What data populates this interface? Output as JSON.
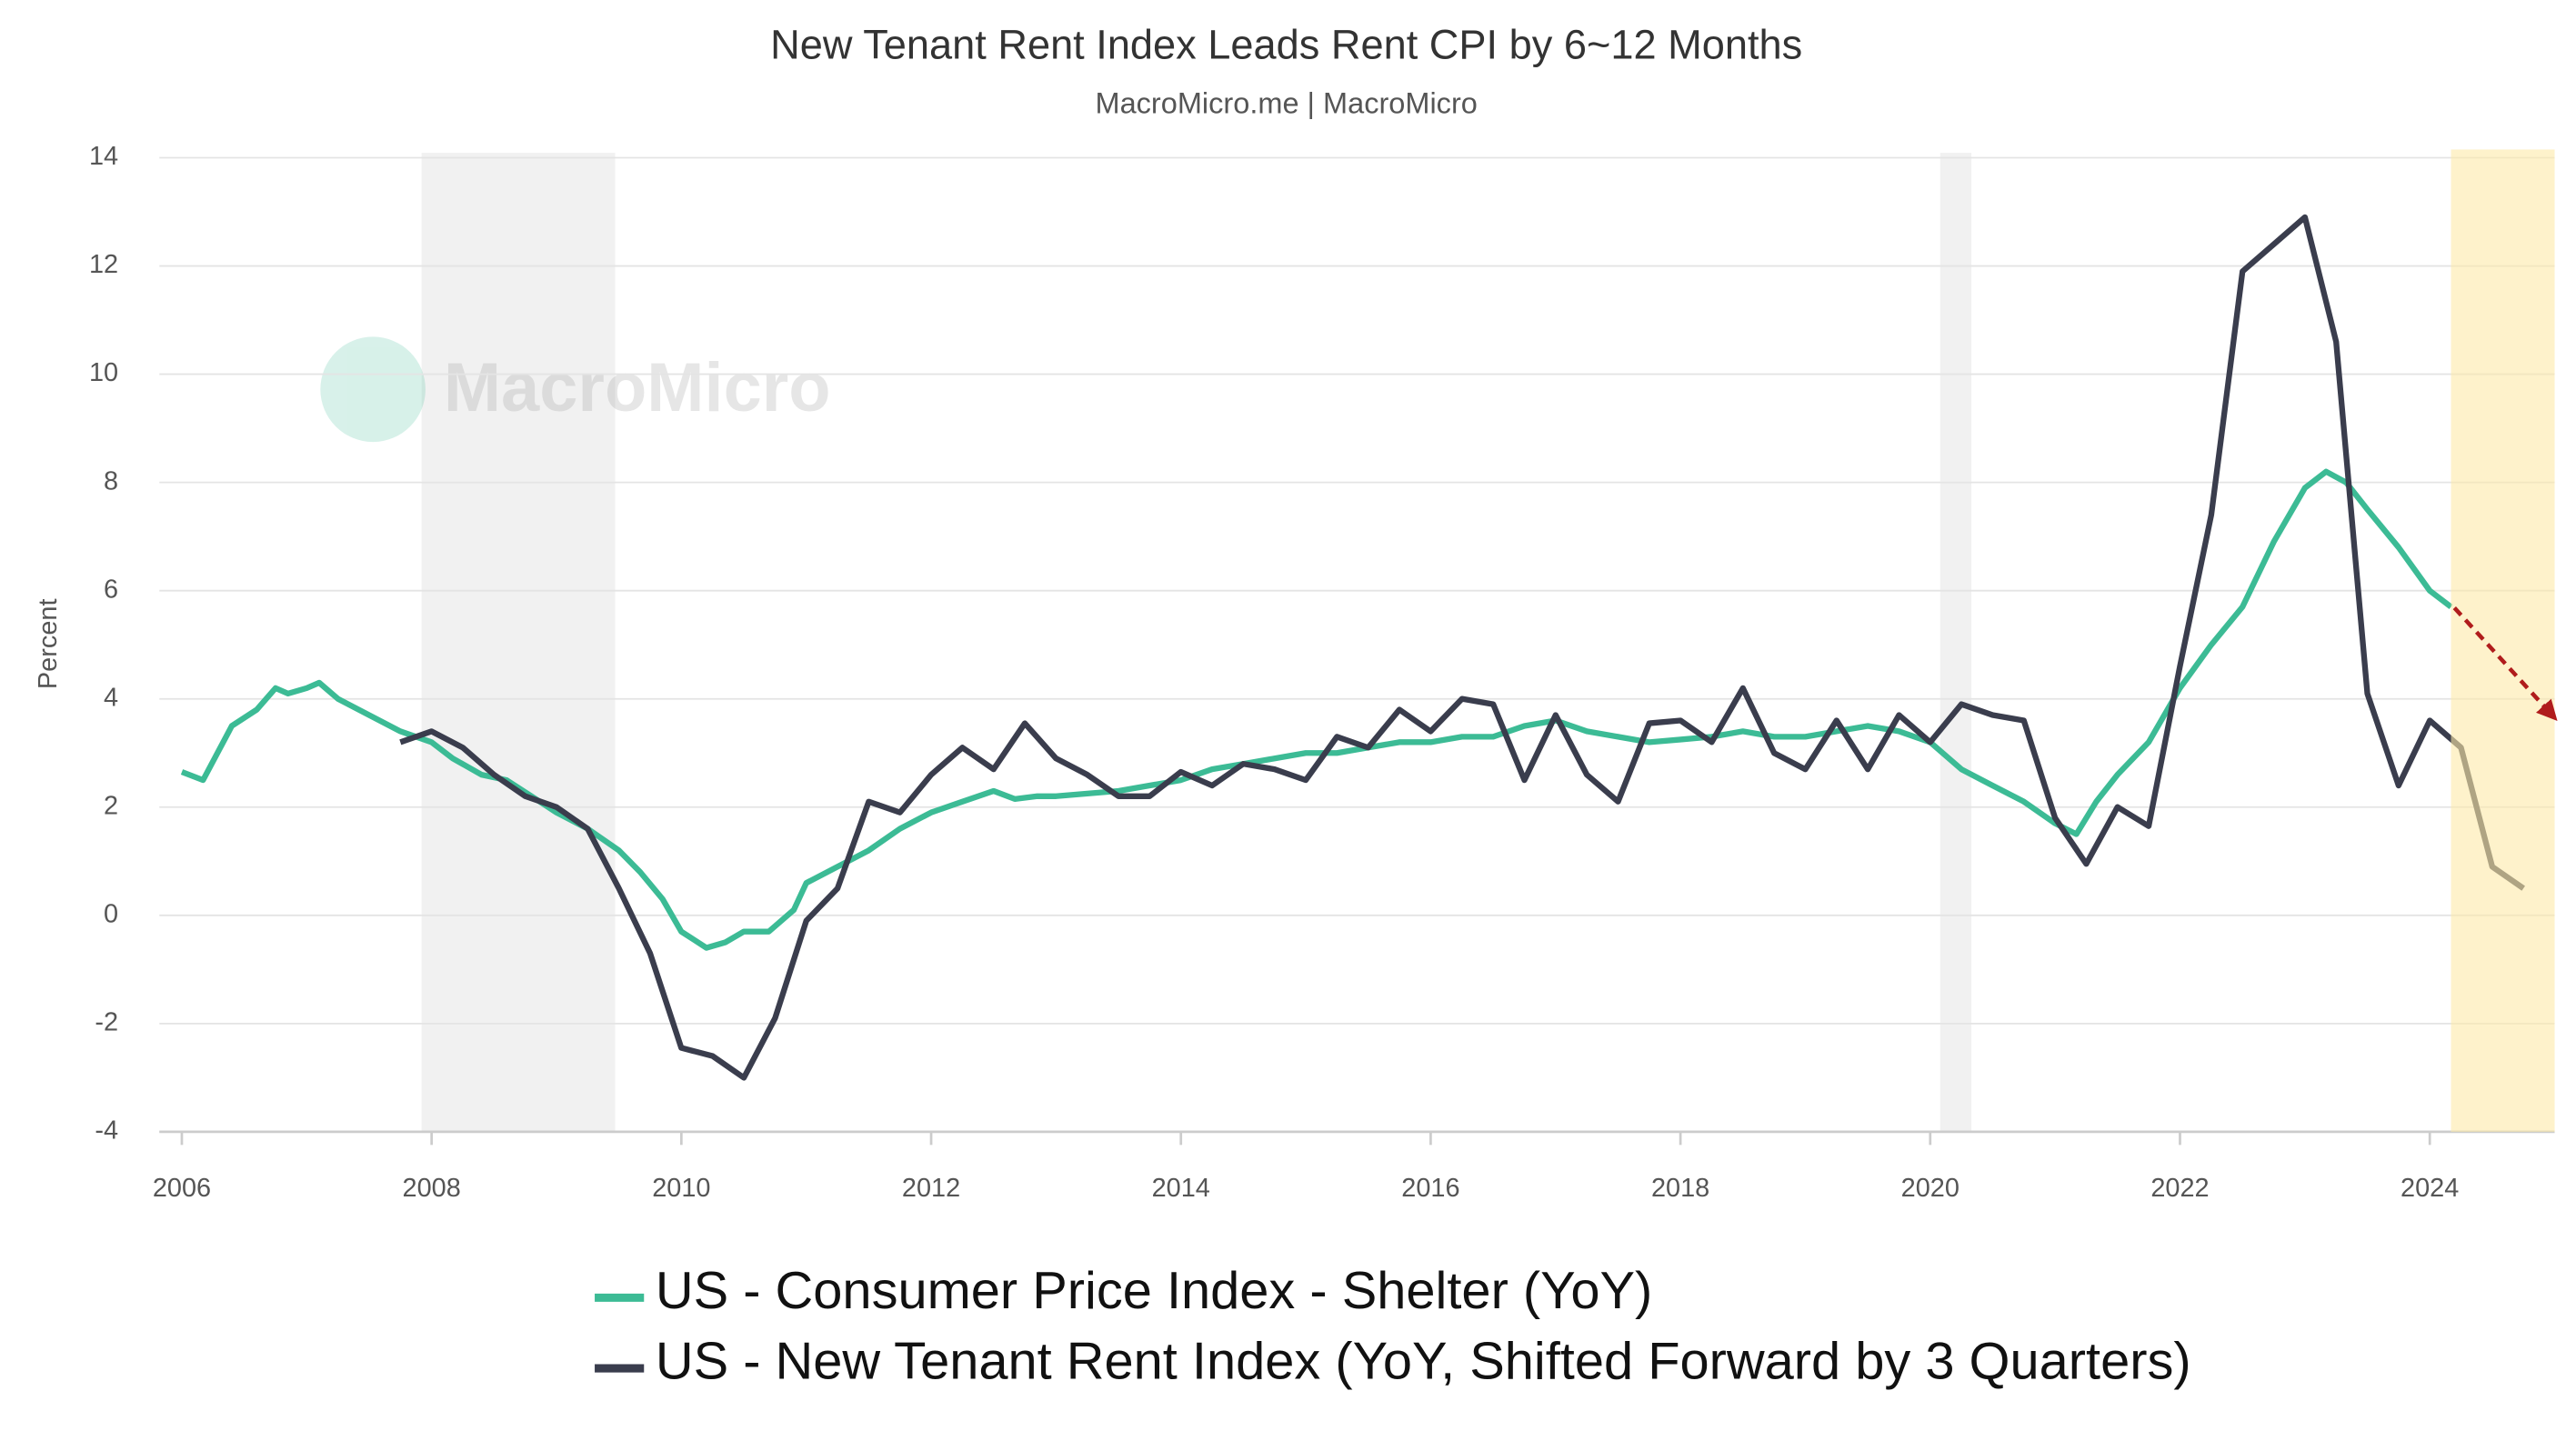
{
  "chart_data": {
    "type": "line",
    "title": "New Tenant Rent Index Leads Rent CPI by 6~12 Months",
    "subtitle": "MacroMicro.me | MacroMicro",
    "watermark": "MacroMicro",
    "y_label": "Percent",
    "xlim": [
      2005.82,
      2025
    ],
    "ylim": [
      -4,
      14
    ],
    "xticks": [
      2006,
      2008,
      2010,
      2012,
      2014,
      2016,
      2018,
      2020,
      2022,
      2024
    ],
    "yticks": [
      -4,
      -2,
      0,
      2,
      4,
      6,
      8,
      10,
      12,
      14
    ],
    "grid": true,
    "legend": "bottom",
    "recessions": [
      [
        2007.92,
        2009.47
      ],
      [
        2020.08,
        2020.33
      ]
    ],
    "forecast_region": [
      2024.17,
      2025
    ],
    "series": [
      {
        "name": "US - Consumer Price Index - Shelter (YoY)",
        "color": "#3cbb95",
        "x": [
          2006.0,
          2006.17,
          2006.4,
          2006.6,
          2006.75,
          2006.85,
          2007.0,
          2007.1,
          2007.25,
          2007.5,
          2007.75,
          2008.0,
          2008.17,
          2008.4,
          2008.6,
          2008.8,
          2009.0,
          2009.25,
          2009.5,
          2009.67,
          2009.85,
          2010.0,
          2010.2,
          2010.35,
          2010.5,
          2010.7,
          2010.9,
          2011.0,
          2011.25,
          2011.5,
          2011.75,
          2012.0,
          2012.25,
          2012.5,
          2012.67,
          2012.85,
          2013.0,
          2013.25,
          2013.5,
          2013.75,
          2014.0,
          2014.25,
          2014.5,
          2014.75,
          2015.0,
          2015.25,
          2015.5,
          2015.75,
          2016.0,
          2016.25,
          2016.5,
          2016.75,
          2017.0,
          2017.25,
          2017.5,
          2017.75,
          2018.0,
          2018.25,
          2018.5,
          2018.75,
          2019.0,
          2019.25,
          2019.5,
          2019.75,
          2020.0,
          2020.25,
          2020.5,
          2020.75,
          2021.0,
          2021.17,
          2021.33,
          2021.5,
          2021.75,
          2022.0,
          2022.25,
          2022.5,
          2022.75,
          2023.0,
          2023.17,
          2023.33,
          2023.5,
          2023.75,
          2024.0,
          2024.17
        ],
        "values": [
          2.65,
          2.5,
          3.5,
          3.8,
          4.2,
          4.1,
          4.2,
          4.3,
          4.0,
          3.7,
          3.4,
          3.2,
          2.9,
          2.6,
          2.5,
          2.2,
          1.9,
          1.6,
          1.2,
          0.8,
          0.3,
          -0.3,
          -0.6,
          -0.5,
          -0.3,
          -0.3,
          0.1,
          0.6,
          0.9,
          1.2,
          1.6,
          1.9,
          2.1,
          2.3,
          2.15,
          2.2,
          2.2,
          2.25,
          2.3,
          2.4,
          2.5,
          2.7,
          2.8,
          2.9,
          3.0,
          3.0,
          3.1,
          3.2,
          3.2,
          3.3,
          3.3,
          3.5,
          3.6,
          3.4,
          3.3,
          3.2,
          3.25,
          3.3,
          3.4,
          3.3,
          3.3,
          3.4,
          3.5,
          3.4,
          3.2,
          2.7,
          2.4,
          2.1,
          1.7,
          1.5,
          2.1,
          2.6,
          3.2,
          4.2,
          5.0,
          5.7,
          6.9,
          7.9,
          8.2,
          8.0,
          7.5,
          6.8,
          6.0,
          5.7
        ]
      },
      {
        "name": "US - New Tenant Rent Index (YoY, Shifted Forward by 3 Quarters)",
        "color": "#3a3d4d",
        "x": [
          2007.75,
          2008.0,
          2008.25,
          2008.5,
          2008.75,
          2009.0,
          2009.25,
          2009.5,
          2009.75,
          2010.0,
          2010.25,
          2010.5,
          2010.75,
          2011.0,
          2011.25,
          2011.5,
          2011.75,
          2012.0,
          2012.25,
          2012.5,
          2012.75,
          2013.0,
          2013.25,
          2013.5,
          2013.75,
          2014.0,
          2014.25,
          2014.5,
          2014.75,
          2015.0,
          2015.25,
          2015.5,
          2015.75,
          2016.0,
          2016.25,
          2016.5,
          2016.75,
          2017.0,
          2017.25,
          2017.5,
          2017.75,
          2018.0,
          2018.25,
          2018.5,
          2018.75,
          2019.0,
          2019.25,
          2019.5,
          2019.75,
          2020.0,
          2020.25,
          2020.5,
          2020.75,
          2021.0,
          2021.25,
          2021.5,
          2021.75,
          2022.0,
          2022.25,
          2022.5,
          2022.75,
          2023.0,
          2023.25,
          2023.5,
          2023.75,
          2024.0,
          2024.25,
          2024.5,
          2024.75
        ],
        "values": [
          3.2,
          3.4,
          3.1,
          2.6,
          2.2,
          2.0,
          1.6,
          0.5,
          -0.7,
          -2.45,
          -2.6,
          -3.0,
          -1.9,
          -0.1,
          0.5,
          2.1,
          1.9,
          2.6,
          3.1,
          2.7,
          3.55,
          2.9,
          2.6,
          2.2,
          2.2,
          2.65,
          2.4,
          2.8,
          2.7,
          2.5,
          3.3,
          3.1,
          3.8,
          3.4,
          4.0,
          3.9,
          2.5,
          3.7,
          2.6,
          2.1,
          3.55,
          3.6,
          3.2,
          4.2,
          3.0,
          2.7,
          3.6,
          2.7,
          3.7,
          3.2,
          3.9,
          3.7,
          3.6,
          1.8,
          0.95,
          2.0,
          1.65,
          4.6,
          7.4,
          11.9,
          12.4,
          12.9,
          10.6,
          4.1,
          2.4,
          3.6,
          3.1,
          0.9,
          0.5
        ]
      }
    ]
  }
}
